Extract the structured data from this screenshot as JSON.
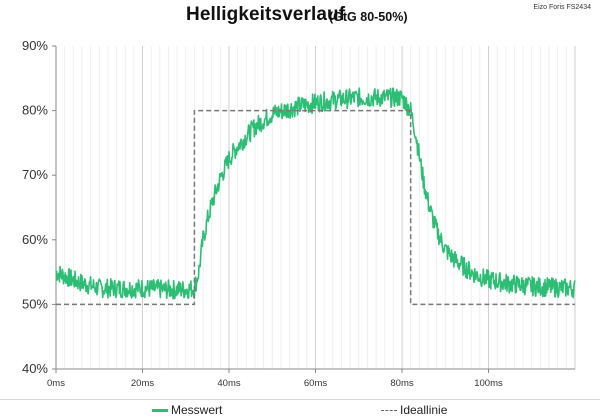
{
  "header": {
    "title": "Helligkeitsverlauf",
    "subtitle": "(GtG 80-50%)",
    "device_note": "Eizo Foris FS2434"
  },
  "colors": {
    "measured": "#2dbd74",
    "ideal": "#777777",
    "grid": "#dcdcdc"
  },
  "chart_data": {
    "type": "line",
    "title": "Helligkeitsverlauf",
    "subtitle": "(GtG 80-50%)",
    "xlabel": "",
    "ylabel": "",
    "xlim": [
      0,
      120
    ],
    "ylim": [
      40,
      90
    ],
    "x_ticks": [
      "0ms",
      "20ms",
      "40ms",
      "60ms",
      "80ms",
      "100ms"
    ],
    "y_ticks": [
      "40%",
      "50%",
      "60%",
      "70%",
      "80%",
      "90%"
    ],
    "grid": "vertical",
    "legend_position": "bottom",
    "series": [
      {
        "name": "Messwert",
        "style": "solid",
        "x": [
          0,
          5,
          10,
          15,
          20,
          25,
          30,
          32,
          33,
          34,
          35,
          36,
          37,
          38,
          39,
          40,
          42,
          44,
          46,
          48,
          50,
          55,
          60,
          65,
          70,
          75,
          80,
          82,
          83,
          84,
          85,
          86,
          87,
          88,
          89,
          90,
          92,
          94,
          96,
          98,
          100,
          105,
          110,
          115,
          120
        ],
        "values": [
          55,
          53.5,
          52.5,
          52.5,
          52.5,
          52.3,
          52.3,
          52.5,
          55,
          60,
          63,
          65.5,
          67.5,
          69.5,
          71,
          72.5,
          74.5,
          76,
          77.5,
          78.5,
          79.5,
          80.5,
          81.2,
          81.7,
          82,
          82,
          82,
          80,
          77,
          73,
          69,
          66,
          63.5,
          61.5,
          60,
          58.5,
          57,
          56,
          55,
          54.3,
          53.8,
          53.2,
          52.8,
          52.6,
          52.5
        ],
        "noise_band": 3
      },
      {
        "name": "Ideallinie",
        "style": "dashed",
        "x": [
          0,
          32,
          32,
          82,
          82,
          120
        ],
        "values": [
          50,
          50,
          80,
          80,
          50,
          50
        ]
      }
    ]
  },
  "legend": [
    {
      "label": "Messwert"
    },
    {
      "label": "Ideallinie"
    }
  ]
}
